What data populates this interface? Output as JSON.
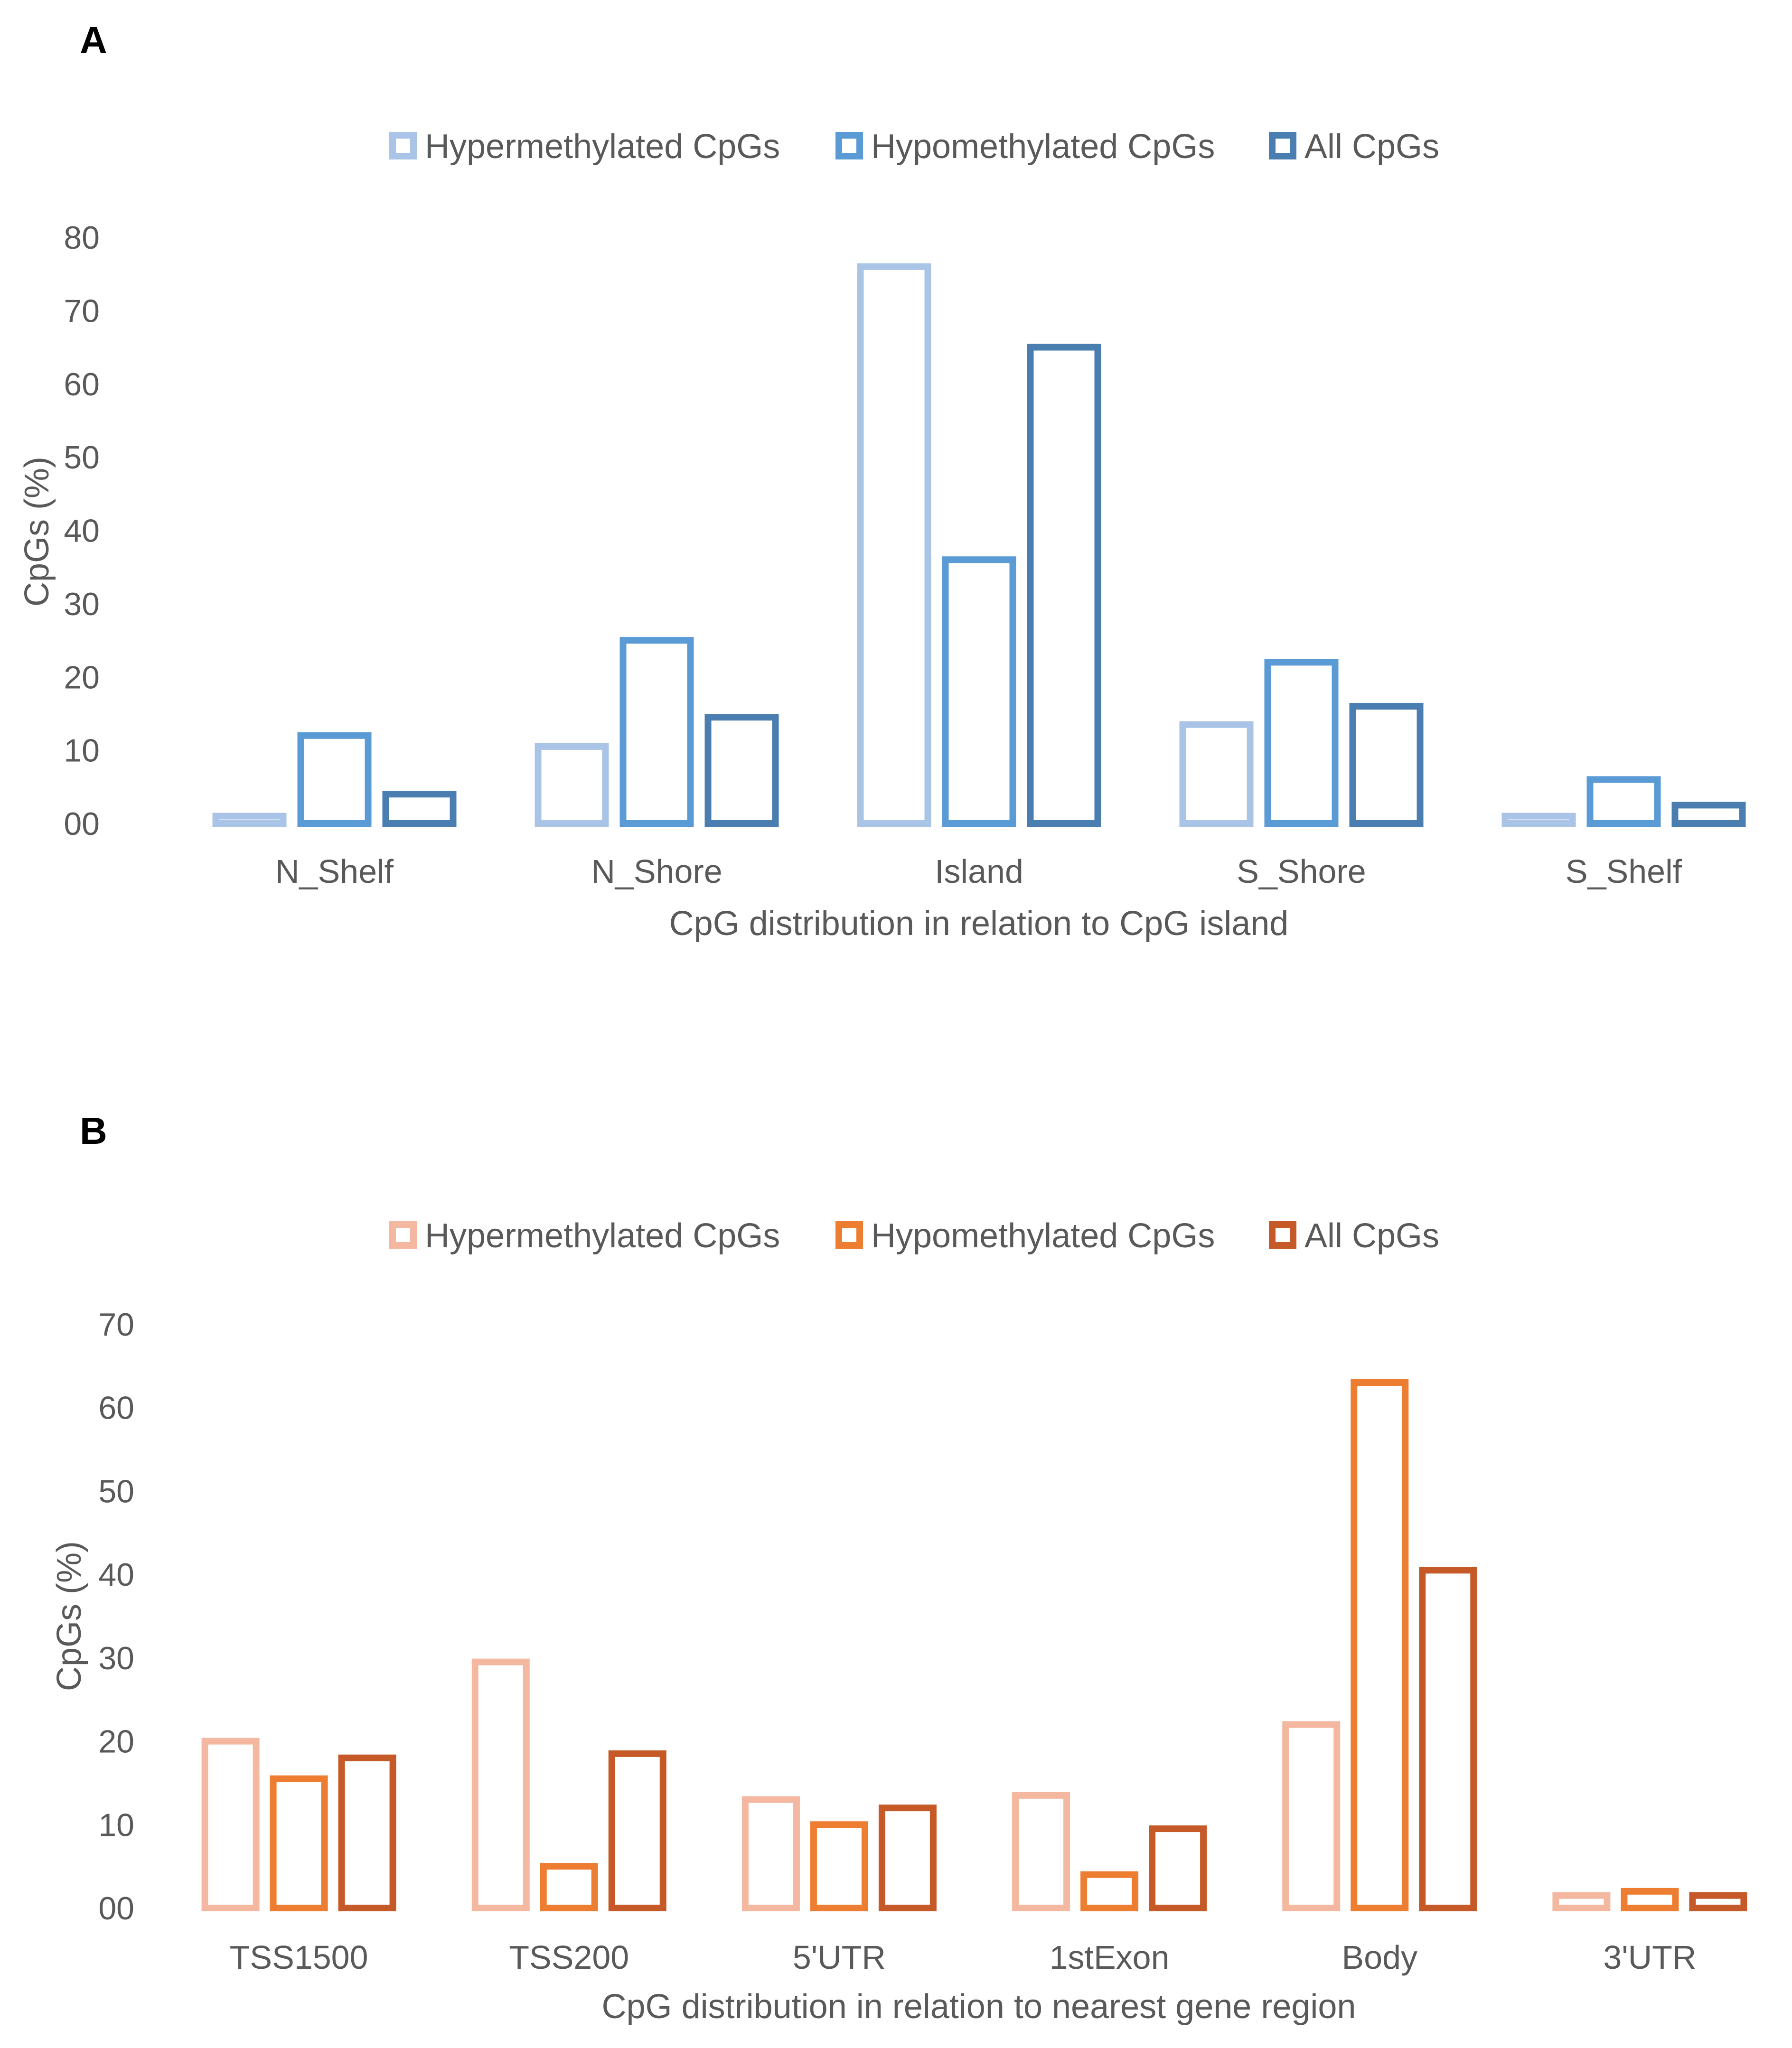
{
  "chart_data": [
    {
      "panel": "A",
      "type": "bar",
      "categories": [
        "N_Shelf",
        "N_Shore",
        "Island",
        "S_Shore",
        "S_Shelf"
      ],
      "series": [
        {
          "name": "Hypermethylated CpGs",
          "color": "#A9C4E6",
          "values": [
            1,
            10.5,
            76,
            13.5,
            1
          ]
        },
        {
          "name": "Hypomethylated CpGs",
          "color": "#5B9BD5",
          "values": [
            12,
            25,
            36,
            22,
            6
          ]
        },
        {
          "name": "All CpGs",
          "color": "#4A7EB0",
          "values": [
            4,
            14.5,
            65,
            16,
            2.5
          ]
        }
      ],
      "yticks": [
        "00",
        "10",
        "20",
        "30",
        "40",
        "50",
        "60",
        "70",
        "80"
      ],
      "ylim": [
        0,
        80
      ],
      "ylabel": "CpGs (%)",
      "xlabel": "CpG distribution in relation to CpG island",
      "legend": "top"
    },
    {
      "panel": "B",
      "type": "bar",
      "categories": [
        "TSS1500",
        "TSS200",
        "5'UTR",
        "1stExon",
        "Body",
        "3'UTR"
      ],
      "series": [
        {
          "name": "Hypermethylated CpGs",
          "color": "#F4B8A0",
          "values": [
            20,
            29.5,
            13,
            13.5,
            22,
            1.5
          ]
        },
        {
          "name": "Hypomethylated CpGs",
          "color": "#ED7D31",
          "values": [
            15.5,
            5,
            10,
            4,
            63,
            2
          ]
        },
        {
          "name": "All CpGs",
          "color": "#C55A28",
          "values": [
            18,
            18.5,
            12,
            9.5,
            40.5,
            1.5
          ]
        }
      ],
      "yticks": [
        "00",
        "10",
        "20",
        "30",
        "40",
        "50",
        "60",
        "70"
      ],
      "ylim": [
        0,
        70
      ],
      "ylabel": "CpGs (%)",
      "xlabel": "CpG distribution in relation to nearest gene region",
      "legend": "top"
    }
  ]
}
